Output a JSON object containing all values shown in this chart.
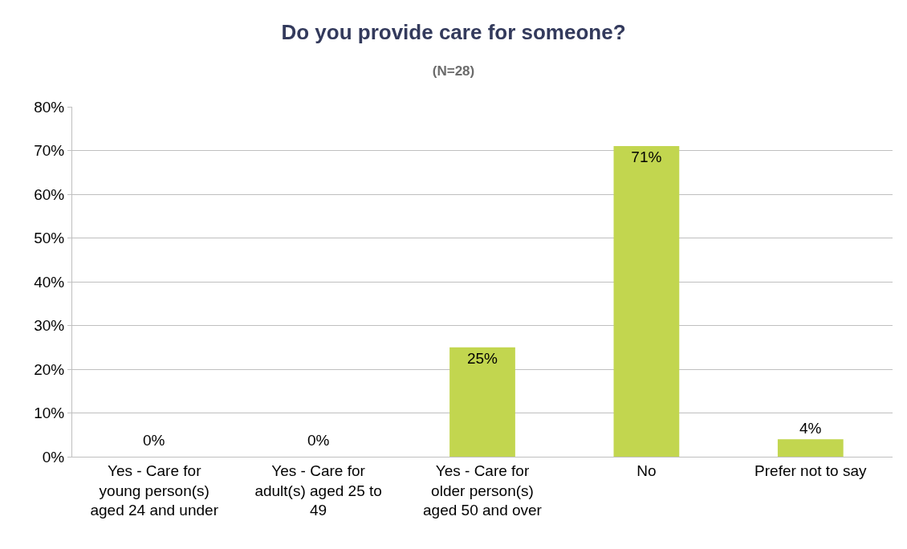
{
  "chart_data": {
    "type": "bar",
    "title": "Do you provide care for someone?",
    "subtitle": "(N=28)",
    "categories": [
      "Yes - Care for young person(s) aged 24 and under",
      "Yes - Care for adult(s) aged 25 to 49",
      "Yes - Care for older person(s) aged 50 and over",
      "No",
      "Prefer not to say"
    ],
    "values": [
      0,
      0,
      25,
      71,
      4
    ],
    "value_labels": [
      "0%",
      "0%",
      "25%",
      "71%",
      "4%"
    ],
    "color": "#c2d64f",
    "ylim": [
      0,
      80
    ],
    "yticks": [
      {
        "value": 0,
        "label": "0%"
      },
      {
        "value": 10,
        "label": "10%"
      },
      {
        "value": 20,
        "label": "20%"
      },
      {
        "value": 30,
        "label": "30%"
      },
      {
        "value": 40,
        "label": "40%"
      },
      {
        "value": 50,
        "label": "50%"
      },
      {
        "value": 60,
        "label": "60%"
      },
      {
        "value": 70,
        "label": "70%"
      },
      {
        "value": 80,
        "label": "80%"
      }
    ],
    "grid": "y",
    "legend": false
  }
}
